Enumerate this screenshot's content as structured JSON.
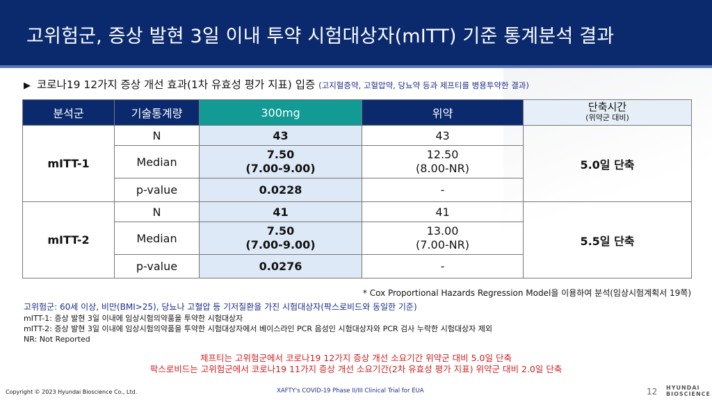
{
  "header": {
    "title": "고위험군, 증상 발현 3일 이내 투약 시험대상자(mITT) 기준 통계분석 결과"
  },
  "subtitle": {
    "marker": "▶",
    "main": "코로나19 12가지 증상 개선 효과(1차 유효성 평가 지표) 입증",
    "note": "(고지혈증약, 고혈압약, 당뇨약 등과  제프티를 병용투약한 결과)"
  },
  "table": {
    "headers": {
      "group": "분석군",
      "stat": "기술통계량",
      "drug": "300mg",
      "placebo": "위약",
      "reduction": "단축시간",
      "reduction_sub": "(위약군 대비)"
    },
    "groups": [
      {
        "name": "mITT-1",
        "rows": [
          {
            "stat": "N",
            "drug": "43",
            "drug2": "",
            "placebo": "43",
            "placebo2": ""
          },
          {
            "stat": "Median",
            "drug": "7.50",
            "drug2": "(7.00-9.00)",
            "placebo": "12.50",
            "placebo2": "(8.00-NR)"
          },
          {
            "stat": "p-value",
            "drug": "0.0228",
            "drug2": "",
            "placebo": "-",
            "placebo2": ""
          }
        ],
        "reduction": "5.0일 단축"
      },
      {
        "name": "mITT-2",
        "rows": [
          {
            "stat": "N",
            "drug": "41",
            "drug2": "",
            "placebo": "41",
            "placebo2": ""
          },
          {
            "stat": "Median",
            "drug": "7.50",
            "drug2": "(7.00-9.00)",
            "placebo": "13.00",
            "placebo2": "(7.00-NR)"
          },
          {
            "stat": "p-value",
            "drug": "0.0276",
            "drug2": "",
            "placebo": "-",
            "placebo2": ""
          }
        ],
        "reduction": "5.5일 단축"
      }
    ]
  },
  "footnote": "* Cox Proportional Hazards Regression Model을 이용하여 분석(임상시험계획서 19쪽)",
  "notes": {
    "high_risk": "고위험군: 60세 이상, 비만(BMI>25), 당뇨나 고혈압 등 기저질환을 가진 시험대상자(팍스로비드와 동일한 기준)",
    "mitt1": "mITT-1: 증상 발현 3일 이내에 임상시험의약품을 투약한 시험대상자",
    "mitt2": "mITT-2: 증상 발현 3일 이내에 임상시험의약품을 투약한 시험대상자에서 베이스라인 PCR 음성인 시험대상자와 PCR 검사 누락한 시험대상자 제외",
    "nr": "NR: Not Reported"
  },
  "conclusion": {
    "line1": "제프티는 고위험군에서 코로나19 12가지 증상 개선 소요기간 위약군 대비 5.0일 단축",
    "line2": "팍스로비드는 고위험군에서 코로나19 11가지 증상 개선 소요기간(2차 유효성 평가 지표) 위약군 대비 2.0일 단축"
  },
  "footer": {
    "copyright": "Copyright © 2023 Hyundai Bioscience Co., Ltd.",
    "trial": "XAFTY's COVID-19 Phase II/III Clinical Trial for EUA",
    "page": "12",
    "logo_line1": "HYUNDAI",
    "logo_line2": "BIOSCIENCE"
  },
  "colors": {
    "header_bg": "#0b2a6e",
    "drug_header": "#129a94",
    "drug_cell": "#dde9f6",
    "conclusion": "#d11f1f"
  }
}
